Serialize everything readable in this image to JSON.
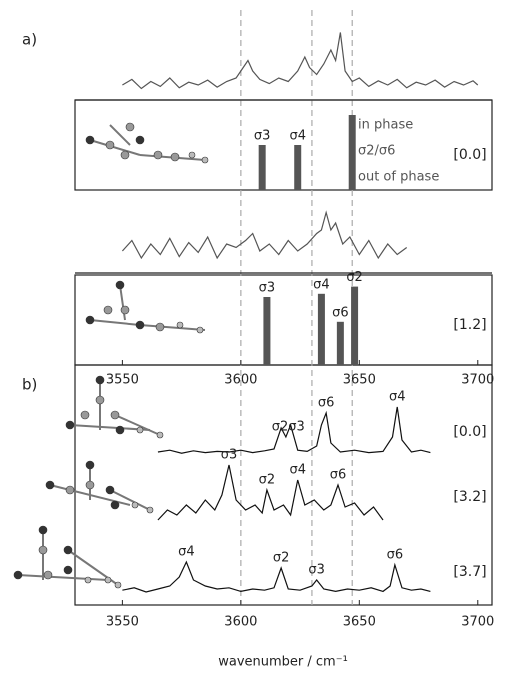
{
  "chart_data": [
    {
      "type": "line",
      "panel_label": "a)",
      "color": "#555",
      "xlim": [
        3530,
        3706
      ],
      "vlines": [
        3600,
        3630,
        3647
      ],
      "x": [
        3550,
        3554,
        3558,
        3562,
        3566,
        3570,
        3574,
        3578,
        3582,
        3586,
        3590,
        3594,
        3598,
        3601,
        3603,
        3605,
        3608,
        3612,
        3616,
        3620,
        3624,
        3627,
        3629,
        3632,
        3635,
        3638,
        3640,
        3642,
        3644,
        3647,
        3650,
        3654,
        3658,
        3662,
        3666,
        3670,
        3674,
        3678,
        3682,
        3686,
        3690,
        3694,
        3698,
        3700
      ],
      "values": [
        0.1,
        0.18,
        0.05,
        0.15,
        0.08,
        0.2,
        0.06,
        0.14,
        0.1,
        0.17,
        0.07,
        0.15,
        0.2,
        0.35,
        0.45,
        0.3,
        0.18,
        0.12,
        0.2,
        0.15,
        0.3,
        0.5,
        0.35,
        0.25,
        0.4,
        0.6,
        0.45,
        0.85,
        0.3,
        0.15,
        0.2,
        0.08,
        0.16,
        0.1,
        0.18,
        0.06,
        0.14,
        0.1,
        0.17,
        0.07,
        0.15,
        0.1,
        0.16,
        0.1
      ]
    },
    {
      "type": "stick",
      "color": "#555",
      "xlim": [
        3530,
        3706
      ],
      "conformer": "[0.0]",
      "x": [
        3609,
        3624,
        3647
      ],
      "values": [
        0.6,
        0.6,
        1.0
      ],
      "labels": [
        "σ3",
        "σ4",
        null
      ],
      "side_labels": [
        "in phase",
        "σ2/σ6",
        "out of phase"
      ]
    },
    {
      "type": "line",
      "color": "#555",
      "xlim": [
        3530,
        3706
      ],
      "x": [
        3550,
        3554,
        3558,
        3562,
        3566,
        3570,
        3574,
        3578,
        3582,
        3586,
        3590,
        3594,
        3598,
        3602,
        3605,
        3608,
        3612,
        3616,
        3620,
        3624,
        3628,
        3632,
        3634,
        3636,
        3638,
        3640,
        3643,
        3646,
        3650,
        3654,
        3658,
        3662,
        3666,
        3670
      ],
      "values": [
        0.2,
        0.35,
        0.1,
        0.3,
        0.15,
        0.38,
        0.12,
        0.32,
        0.18,
        0.4,
        0.1,
        0.3,
        0.25,
        0.35,
        0.45,
        0.2,
        0.3,
        0.15,
        0.35,
        0.2,
        0.3,
        0.45,
        0.5,
        0.75,
        0.5,
        0.6,
        0.3,
        0.4,
        0.15,
        0.35,
        0.1,
        0.3,
        0.15,
        0.25
      ]
    },
    {
      "type": "stick",
      "color": "#555",
      "xlim": [
        3530,
        3706
      ],
      "conformer": "[1.2]",
      "x": [
        3611,
        3634,
        3642,
        3648
      ],
      "values": [
        0.85,
        0.89,
        0.54,
        0.98
      ],
      "labels": [
        "σ3",
        "σ4",
        "σ6",
        "σ2"
      ],
      "xticks": [
        3550,
        3600,
        3650,
        3700
      ]
    },
    {
      "type": "line",
      "panel_label": "b)",
      "color": "#111",
      "xlim": [
        3530,
        3706
      ],
      "conformer": "[0.0]",
      "x": [
        3565,
        3570,
        3575,
        3580,
        3585,
        3590,
        3595,
        3600,
        3605,
        3610,
        3614,
        3617,
        3619,
        3621,
        3624,
        3628,
        3632,
        3634,
        3636,
        3638,
        3642,
        3648,
        3654,
        3660,
        3664,
        3666,
        3668,
        3672,
        3676,
        3680
      ],
      "values": [
        0.05,
        0.08,
        0.03,
        0.07,
        0.04,
        0.06,
        0.05,
        0.08,
        0.04,
        0.07,
        0.1,
        0.45,
        0.3,
        0.5,
        0.08,
        0.06,
        0.15,
        0.5,
        0.7,
        0.2,
        0.05,
        0.08,
        0.04,
        0.06,
        0.3,
        0.8,
        0.25,
        0.05,
        0.08,
        0.04
      ],
      "annotations": [
        {
          "text": "σ2σ3",
          "x": 3620
        },
        {
          "text": "σ6",
          "x": 3636
        },
        {
          "text": "σ4",
          "x": 3666
        }
      ]
    },
    {
      "type": "line",
      "color": "#111",
      "xlim": [
        3530,
        3706
      ],
      "conformer": "[3.2]",
      "x": [
        3565,
        3569,
        3573,
        3577,
        3581,
        3585,
        3589,
        3592,
        3595,
        3598,
        3602,
        3606,
        3609,
        3611,
        3614,
        3618,
        3621,
        3624,
        3627,
        3631,
        3635,
        3638,
        3641,
        3644,
        3648,
        3652,
        3656,
        3660
      ],
      "values": [
        0.05,
        0.15,
        0.1,
        0.2,
        0.12,
        0.25,
        0.15,
        0.3,
        0.6,
        0.25,
        0.15,
        0.2,
        0.12,
        0.35,
        0.15,
        0.2,
        0.1,
        0.45,
        0.2,
        0.25,
        0.15,
        0.2,
        0.4,
        0.18,
        0.22,
        0.1,
        0.18,
        0.05
      ],
      "annotations": [
        {
          "text": "σ3",
          "x": 3595
        },
        {
          "text": "σ2",
          "x": 3611
        },
        {
          "text": "σ4",
          "x": 3624
        },
        {
          "text": "σ6",
          "x": 3641
        }
      ]
    },
    {
      "type": "line",
      "color": "#111",
      "xlim": [
        3530,
        3706
      ],
      "conformer": "[3.7]",
      "x": [
        3550,
        3555,
        3560,
        3565,
        3570,
        3574,
        3577,
        3580,
        3585,
        3590,
        3595,
        3600,
        3605,
        3610,
        3614,
        3617,
        3620,
        3625,
        3630,
        3632,
        3635,
        3640,
        3645,
        3650,
        3655,
        3660,
        3663,
        3665,
        3668,
        3672,
        3676,
        3680
      ],
      "values": [
        0.08,
        0.12,
        0.05,
        0.1,
        0.15,
        0.3,
        0.55,
        0.25,
        0.15,
        0.1,
        0.12,
        0.06,
        0.1,
        0.08,
        0.12,
        0.45,
        0.1,
        0.08,
        0.15,
        0.25,
        0.1,
        0.06,
        0.1,
        0.08,
        0.12,
        0.06,
        0.15,
        0.5,
        0.12,
        0.08,
        0.1,
        0.06
      ],
      "annotations": [
        {
          "text": "σ4",
          "x": 3577
        },
        {
          "text": "σ2",
          "x": 3617
        },
        {
          "text": "σ3",
          "x": 3632
        },
        {
          "text": "σ6",
          "x": 3665
        }
      ],
      "xticks": [
        3550,
        3600,
        3650,
        3700
      ],
      "x_label": "wavenumber / cm⁻¹"
    }
  ]
}
